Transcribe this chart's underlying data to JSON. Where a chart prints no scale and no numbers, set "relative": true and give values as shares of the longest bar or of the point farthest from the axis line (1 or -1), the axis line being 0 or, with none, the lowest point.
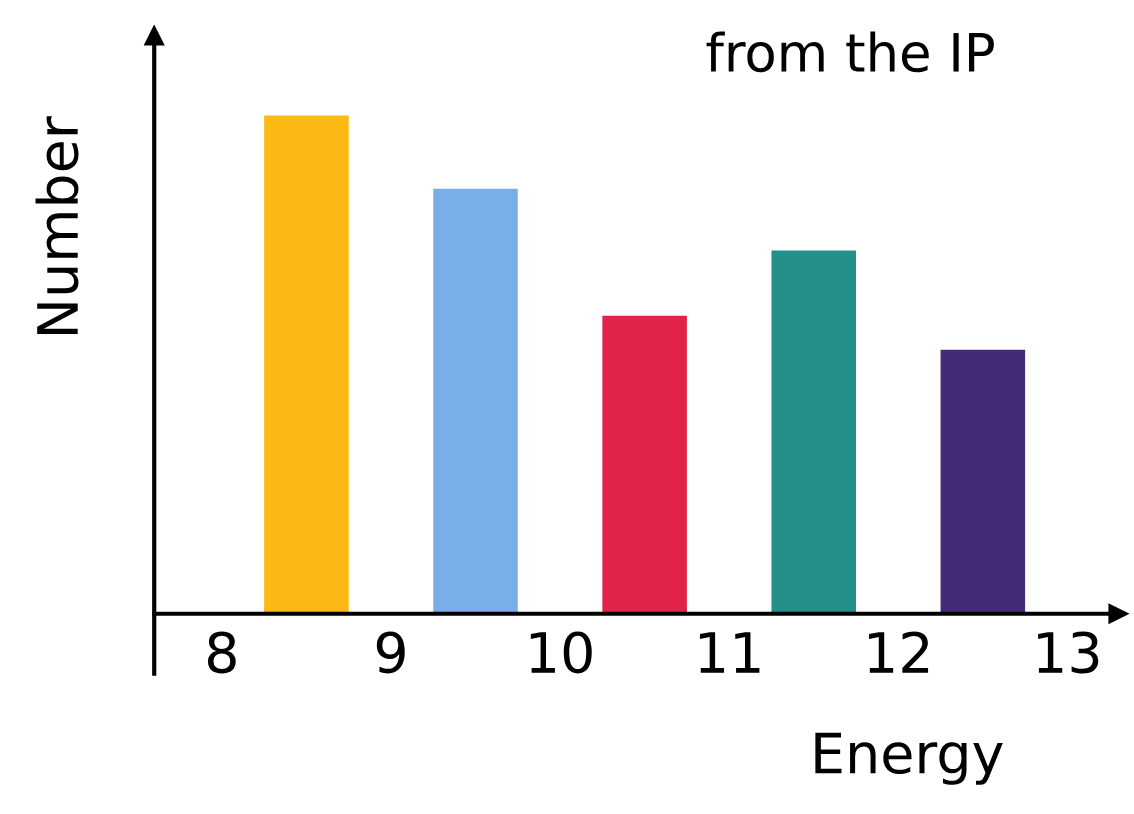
{
  "chart_data": {
    "type": "bar",
    "x": [
      8.5,
      9.5,
      10.5,
      11.5,
      12.5
    ],
    "values": [
      1,
      0.853,
      0.598,
      0.729,
      0.53
    ],
    "colors": [
      "#fdb913",
      "#7aaee8",
      "#e0234a",
      "#23908a",
      "#452a78"
    ],
    "relative": true,
    "xlim": [
      7.6,
      13.3
    ],
    "xticks": [
      8,
      9,
      10,
      11,
      12,
      13
    ],
    "xlabel": "Energy",
    "ylabel": "Number",
    "annotations": [
      "from the IP"
    ],
    "grid": false,
    "legend": false
  }
}
